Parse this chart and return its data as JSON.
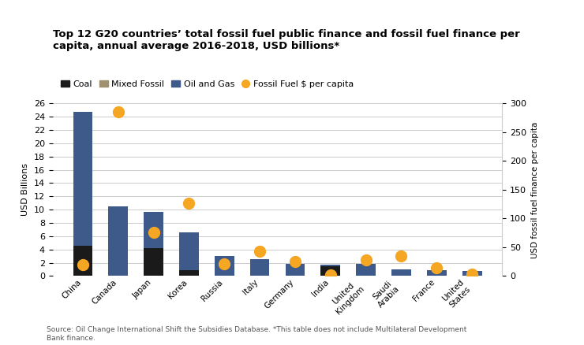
{
  "title": "Top 12 G20 countries’ total fossil fuel public finance and fossil fuel finance per\ncapita, annual average 2016-2018, USD billions*",
  "countries": [
    "China",
    "Canada",
    "Japan",
    "Korea",
    "Russia",
    "Italy",
    "Germany",
    "India",
    "United\nKingdom",
    "Saudi\nArabia",
    "France",
    "United\nStates"
  ],
  "coal": [
    4.5,
    0.0,
    4.2,
    0.9,
    0.0,
    0.0,
    0.0,
    1.5,
    0.0,
    0.0,
    0.0,
    0.0
  ],
  "mixed_fossil": [
    0.0,
    0.0,
    0.0,
    0.0,
    0.0,
    0.0,
    0.0,
    0.0,
    0.0,
    0.0,
    0.0,
    0.0
  ],
  "oil_and_gas": [
    20.2,
    10.5,
    5.5,
    5.7,
    3.0,
    2.6,
    1.8,
    0.25,
    1.8,
    1.05,
    0.9,
    0.75
  ],
  "per_capita": [
    20,
    285,
    76,
    127,
    21,
    43,
    25,
    2,
    28,
    35,
    14,
    3
  ],
  "ylabel_left": "USD Billions",
  "ylabel_right": "USD fossil fuel finance per capita",
  "ylim_left": [
    0,
    26
  ],
  "ylim_right": [
    0,
    300
  ],
  "yticks_left": [
    0,
    2,
    4,
    6,
    8,
    10,
    12,
    14,
    16,
    18,
    20,
    22,
    24,
    26
  ],
  "yticks_right": [
    0,
    50,
    100,
    150,
    200,
    250,
    300
  ],
  "coal_color": "#1a1a1a",
  "mixed_fossil_color": "#a09070",
  "oil_gas_color": "#3d5a8a",
  "per_capita_color": "#f5a623",
  "bar_width": 0.55,
  "source_text": "Source: Oil Change International Shift the Subsidies Database. *This table does not include Multilateral Development\nBank finance.",
  "background_color": "#ffffff",
  "grid_color": "#cccccc"
}
